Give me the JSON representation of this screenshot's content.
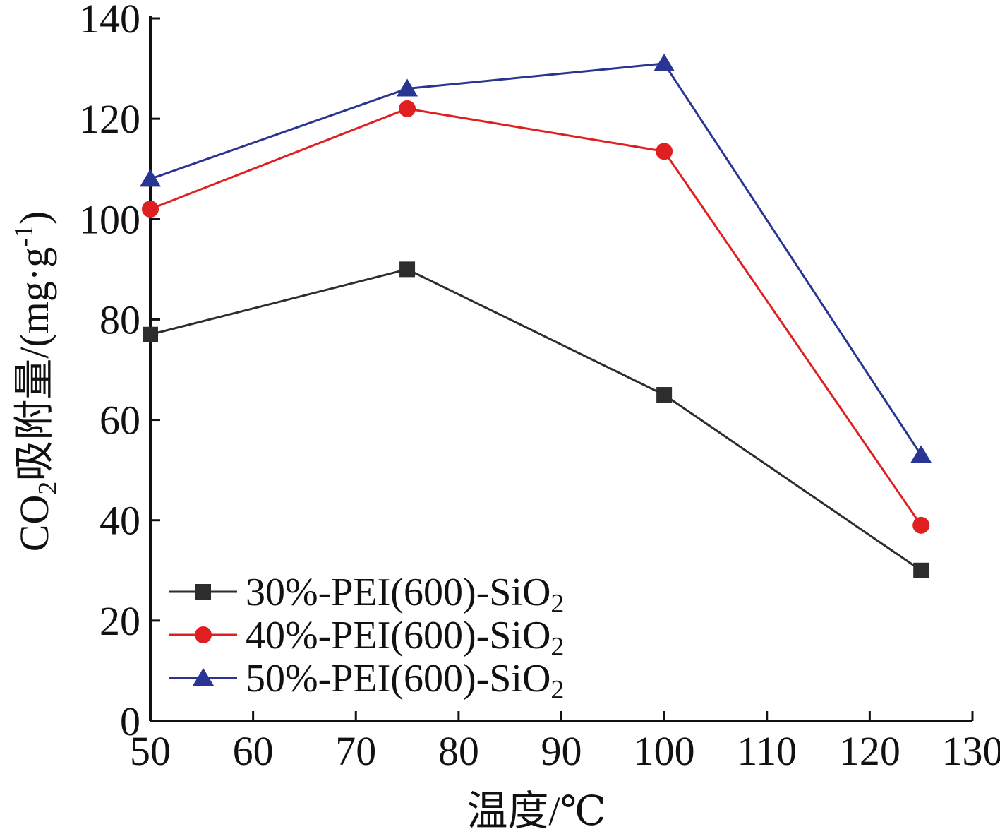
{
  "chart_data": {
    "type": "line",
    "title": "",
    "xlabel": "温度/℃",
    "ylabel": {
      "prefix": "CO",
      "sub": "2",
      "main": "吸附量/(mg·g",
      "sup": "-1",
      "suffix": ")"
    },
    "xlim": [
      50,
      130
    ],
    "ylim": [
      0,
      140
    ],
    "xticks": [
      50,
      60,
      70,
      80,
      90,
      100,
      110,
      120,
      130
    ],
    "yticks": [
      0,
      20,
      40,
      60,
      80,
      100,
      120,
      140
    ],
    "x": [
      50,
      75,
      100,
      125
    ],
    "legend_position": "bottom-left",
    "grid": false,
    "series": [
      {
        "name": "30%-PEI(600)-SiO",
        "name_sub": "2",
        "color": "#2d2d2d",
        "marker": "square",
        "values": [
          77,
          90,
          65,
          30
        ]
      },
      {
        "name": "40%-PEI(600)-SiO",
        "name_sub": "2",
        "color": "#e02020",
        "marker": "circle",
        "values": [
          102,
          122,
          113.5,
          39
        ]
      },
      {
        "name": "50%-PEI(600)-SiO",
        "name_sub": "2",
        "color": "#283592",
        "marker": "triangle",
        "values": [
          108,
          126,
          131,
          53
        ]
      }
    ]
  }
}
